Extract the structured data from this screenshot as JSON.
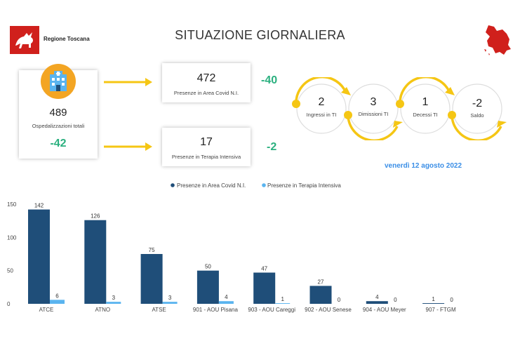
{
  "header": {
    "brand": "Regione Toscana",
    "title": "SITUAZIONE GIORNALIERA"
  },
  "kpi": {
    "total": {
      "value": "489",
      "label": "Ospedalizzazioni totali",
      "delta": "-42"
    },
    "covid": {
      "value": "472",
      "label": "Presenze in Area Covid N.I.",
      "delta": "-40"
    },
    "ti": {
      "value": "17",
      "label": "Presenze in Terapia Intensiva",
      "delta": "-2"
    }
  },
  "flow": [
    {
      "value": "2",
      "label": "Ingressi in TI"
    },
    {
      "value": "3",
      "label": "Dimissioni TI"
    },
    {
      "value": "1",
      "label": "Decessi TI"
    },
    {
      "value": "-2",
      "label": "Saldo"
    }
  ],
  "date": "venerdì 12 agosto 2022",
  "colors": {
    "covid": "#1f4e79",
    "ti": "#5ab4ef",
    "accent": "#f5c614",
    "delta": "#2bb07f",
    "date": "#3a8ee6",
    "brand": "#d0201c"
  },
  "icons": {
    "hospital": "hospital-icon",
    "logo": "pegasus-logo-icon",
    "map": "tuscany-map-icon"
  },
  "chart_data": {
    "type": "bar",
    "categories": [
      "ATCE",
      "ATNO",
      "ATSE",
      "901 - AOU Pisana",
      "903 - AOU Careggi",
      "902 - AOU Senese",
      "904 - AOU Meyer",
      "907 - FTGM"
    ],
    "series": [
      {
        "name": "Presenze in Area Covid N.I.",
        "values": [
          142,
          126,
          75,
          50,
          47,
          27,
          4,
          1
        ]
      },
      {
        "name": "Presenze in Terapia Intensiva",
        "values": [
          6,
          3,
          3,
          4,
          1,
          0,
          0,
          0
        ]
      }
    ],
    "yticks": [
      0,
      50,
      100,
      150
    ],
    "ylim": [
      0,
      150
    ],
    "legend": "top-center"
  }
}
